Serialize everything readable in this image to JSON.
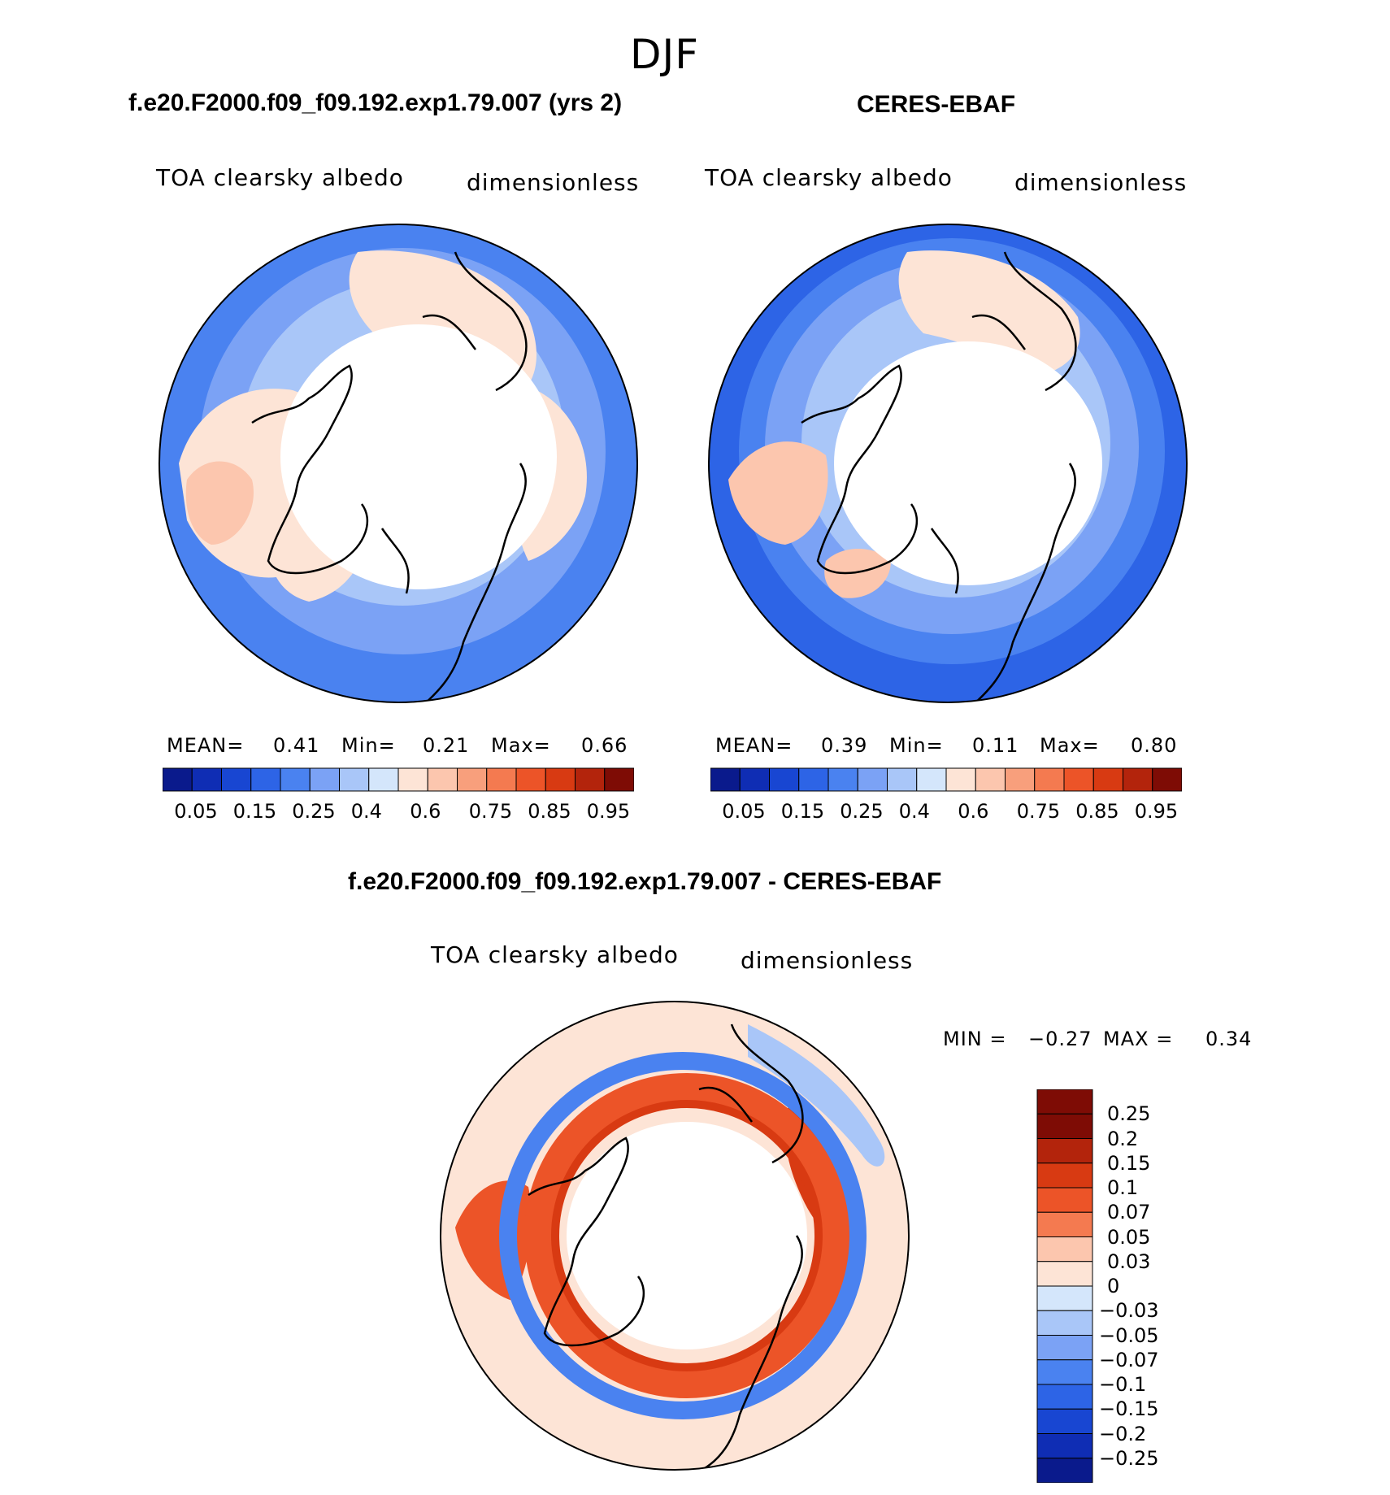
{
  "figure": {
    "season": "DJF"
  },
  "panels": [
    {
      "title": "f.e20.F2000.f09_f09.192.exp1.79.007 (yrs 2)",
      "variable": "TOA clearsky albedo",
      "units": "dimensionless",
      "mean_label": "MEAN=",
      "mean": "0.41",
      "min_label": "Min=",
      "min": "0.21",
      "max_label": "Max=",
      "max": "0.66",
      "colorbar_ticks": [
        "0.05",
        "0.15",
        "0.25",
        "0.4",
        "0.6",
        "0.75",
        "0.85",
        "0.95"
      ]
    },
    {
      "title": "CERES-EBAF",
      "variable": "TOA clearsky albedo",
      "units": "dimensionless",
      "mean_label": "MEAN=",
      "mean": "0.39",
      "min_label": "Min=",
      "min": "0.11",
      "max_label": "Max=",
      "max": "0.80",
      "colorbar_ticks": [
        "0.05",
        "0.15",
        "0.25",
        "0.4",
        "0.6",
        "0.75",
        "0.85",
        "0.95"
      ]
    }
  ],
  "difference": {
    "title": "f.e20.F2000.f09_f09.192.exp1.79.007 - CERES-EBAF",
    "variable": "TOA clearsky albedo",
    "units": "dimensionless",
    "min_label": "MIN =",
    "min": "−0.27",
    "max_label": "MAX =",
    "max": "0.34",
    "colorbar_labels": [
      "0.25",
      "0.2",
      "0.15",
      "0.1",
      "0.07",
      "0.05",
      "0.03",
      "0",
      "−0.03",
      "−0.05",
      "−0.07",
      "−0.1",
      "−0.15",
      "−0.2",
      "−0.25"
    ]
  },
  "colors": {
    "sequential": [
      "#0a1a8c",
      "#0f2db4",
      "#1846d2",
      "#2d64e6",
      "#4a82f0",
      "#7ba2f5",
      "#a9c6f8",
      "#d4e6fb",
      "#fde4d6",
      "#fcc6ae",
      "#f89f7c",
      "#f47a50",
      "#ec5428",
      "#d83a12",
      "#b3240c",
      "#7e0c05"
    ],
    "diverging": [
      "#7e0c05",
      "#b3240c",
      "#d83a12",
      "#ec5428",
      "#f47a50",
      "#fcc6ae",
      "#fde4d6",
      "#d4e6fb",
      "#a9c6f8",
      "#7ba2f5",
      "#4a82f0",
      "#2d64e6",
      "#1846d2",
      "#0f2db4",
      "#0a1a8c"
    ]
  }
}
